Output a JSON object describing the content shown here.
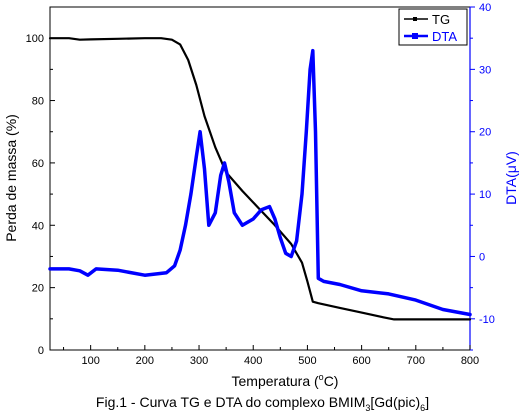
{
  "chart_data": {
    "type": "line",
    "x_axis": {
      "label_prefix": "Temperatura (",
      "label_sup": "o",
      "label_suffix": "C)",
      "range": [
        25,
        800
      ],
      "ticks": [
        100,
        200,
        300,
        400,
        500,
        600,
        700,
        800
      ]
    },
    "y_left": {
      "label": "Perda de massa (%)",
      "range": [
        0,
        110
      ],
      "ticks": [
        0,
        20,
        40,
        60,
        80,
        100
      ],
      "color": "#000000"
    },
    "y_right": {
      "label": "DTA(μV)",
      "range": [
        -15,
        40
      ],
      "ticks": [
        -10,
        0,
        10,
        20,
        30,
        40
      ],
      "color": "#0000ff"
    },
    "legend": {
      "position": "top-right",
      "entries": [
        "TG",
        "DTA"
      ]
    },
    "grid": false,
    "series": [
      {
        "name": "TG",
        "axis": "left",
        "color": "#000000",
        "x": [
          25,
          60,
          80,
          100,
          150,
          200,
          230,
          250,
          265,
          280,
          295,
          310,
          330,
          350,
          380,
          410,
          440,
          470,
          490,
          500,
          510,
          520,
          560,
          600,
          640,
          660,
          700,
          750,
          800
        ],
        "y": [
          100,
          100,
          99.5,
          99.6,
          99.8,
          100,
          100,
          99.5,
          98,
          93,
          85,
          75,
          65,
          57,
          51,
          45.5,
          40,
          34,
          28,
          22,
          15.5,
          15,
          13.5,
          12,
          10.5,
          9.8,
          9.8,
          9.8,
          9.8
        ]
      },
      {
        "name": "DTA",
        "axis": "right",
        "color": "#0000ff",
        "x": [
          25,
          60,
          80,
          95,
          110,
          150,
          200,
          240,
          255,
          265,
          275,
          285,
          295,
          302,
          310,
          318,
          330,
          340,
          347,
          355,
          365,
          380,
          400,
          415,
          430,
          440,
          450,
          460,
          470,
          480,
          490,
          498,
          505,
          510,
          515,
          520,
          530,
          560,
          600,
          650,
          700,
          750,
          800
        ],
        "y": [
          -2,
          -2,
          -2.3,
          -3,
          -2,
          -2.2,
          -3,
          -2.6,
          -1.5,
          1,
          5,
          10,
          16,
          20,
          14,
          5,
          7,
          13,
          15,
          12,
          7,
          5,
          6,
          7.5,
          8,
          6,
          3,
          0.5,
          0,
          2.5,
          10,
          20,
          30,
          33,
          20,
          -3.5,
          -4,
          -4.5,
          -5.5,
          -6,
          -7,
          -8.5,
          -9.3
        ]
      }
    ]
  },
  "caption": {
    "text": "Fig.1 - Curva TG e DTA do complexo BMIM",
    "sub1": "3",
    "mid": "[Gd(pic)",
    "sub2": "6",
    "end": "]"
  }
}
